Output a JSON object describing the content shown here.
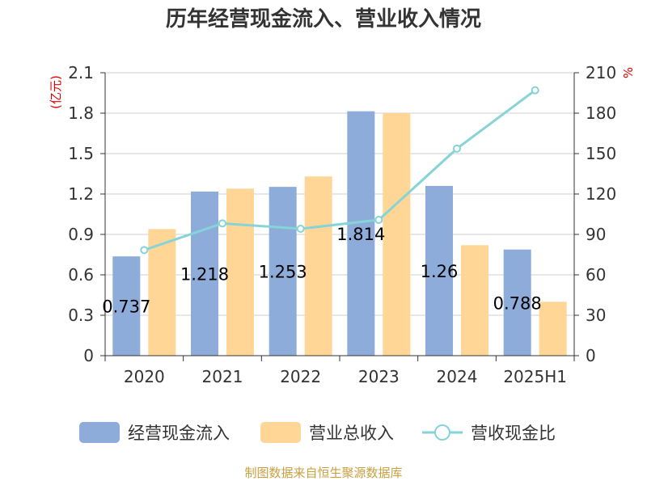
{
  "chart_data": {
    "type": "bar",
    "title": "历年经营现金流入、营业收入情况",
    "categories": [
      "2020",
      "2021",
      "2022",
      "2023",
      "2024",
      "2025H1"
    ],
    "series": [
      {
        "name": "经营现金流入",
        "kind": "bar",
        "axis": "left",
        "color": "#8EACDA",
        "values": [
          0.737,
          1.218,
          1.253,
          1.814,
          1.26,
          0.788
        ],
        "labels": [
          "0.737",
          "1.218",
          "1.253",
          "1.814",
          "1.26",
          "0.788"
        ]
      },
      {
        "name": "营业总收入",
        "kind": "bar",
        "axis": "left",
        "color": "#FFD696",
        "values": [
          0.94,
          1.24,
          1.33,
          1.8,
          0.82,
          0.4
        ]
      },
      {
        "name": "营收现金比",
        "kind": "line",
        "axis": "right",
        "color": "#86D4D8",
        "values": [
          78.4,
          98.2,
          94.2,
          100.8,
          153.7,
          197.0
        ]
      }
    ],
    "yleft": {
      "unit": "(亿元)",
      "ylim": [
        0,
        2.1
      ],
      "ticks": [
        "0",
        "0.3",
        "0.6",
        "0.9",
        "1.2",
        "1.5",
        "1.8",
        "2.1"
      ]
    },
    "yright": {
      "unit": "%",
      "ylim": [
        0,
        210
      ],
      "ticks": [
        "0",
        "30",
        "60",
        "90",
        "120",
        "150",
        "180",
        "210"
      ]
    },
    "grid": true,
    "legend": "bottom"
  },
  "footer": "制图数据来自恒生聚源数据库"
}
